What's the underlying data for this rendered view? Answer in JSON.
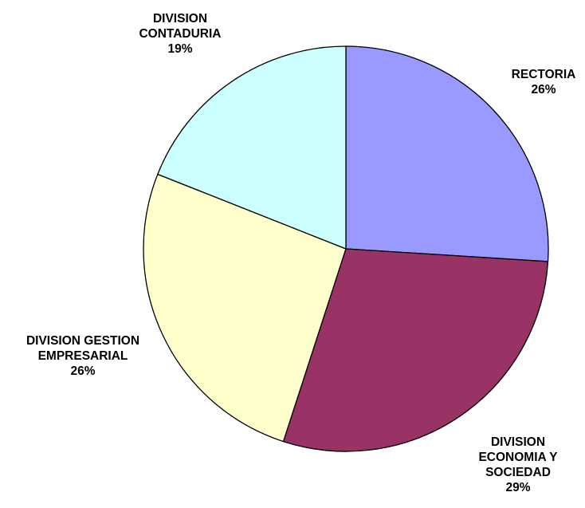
{
  "chart_data": {
    "type": "pie",
    "title": "",
    "start_angle_deg": 0,
    "direction": "clockwise",
    "legend": "none",
    "slices": [
      {
        "name": "RECTORIA",
        "name_lines": [
          "RECTORIA"
        ],
        "value": 26,
        "pct_label": "26%",
        "color": "#9999FF"
      },
      {
        "name": "DIVISION ECONOMIA Y SOCIEDAD",
        "name_lines": [
          "DIVISION",
          "ECONOMIA Y",
          "SOCIEDAD"
        ],
        "value": 29,
        "pct_label": "29%",
        "color": "#993366"
      },
      {
        "name": "DIVISION GESTION EMPRESARIAL",
        "name_lines": [
          "DIVISION GESTION",
          "EMPRESARIAL"
        ],
        "value": 26,
        "pct_label": "26%",
        "color": "#FFFFCC"
      },
      {
        "name": "DIVISION CONTADURIA",
        "name_lines": [
          "DIVISION",
          "CONTADURIA"
        ],
        "value": 19,
        "pct_label": "19%",
        "color": "#CCFFFF"
      }
    ]
  }
}
